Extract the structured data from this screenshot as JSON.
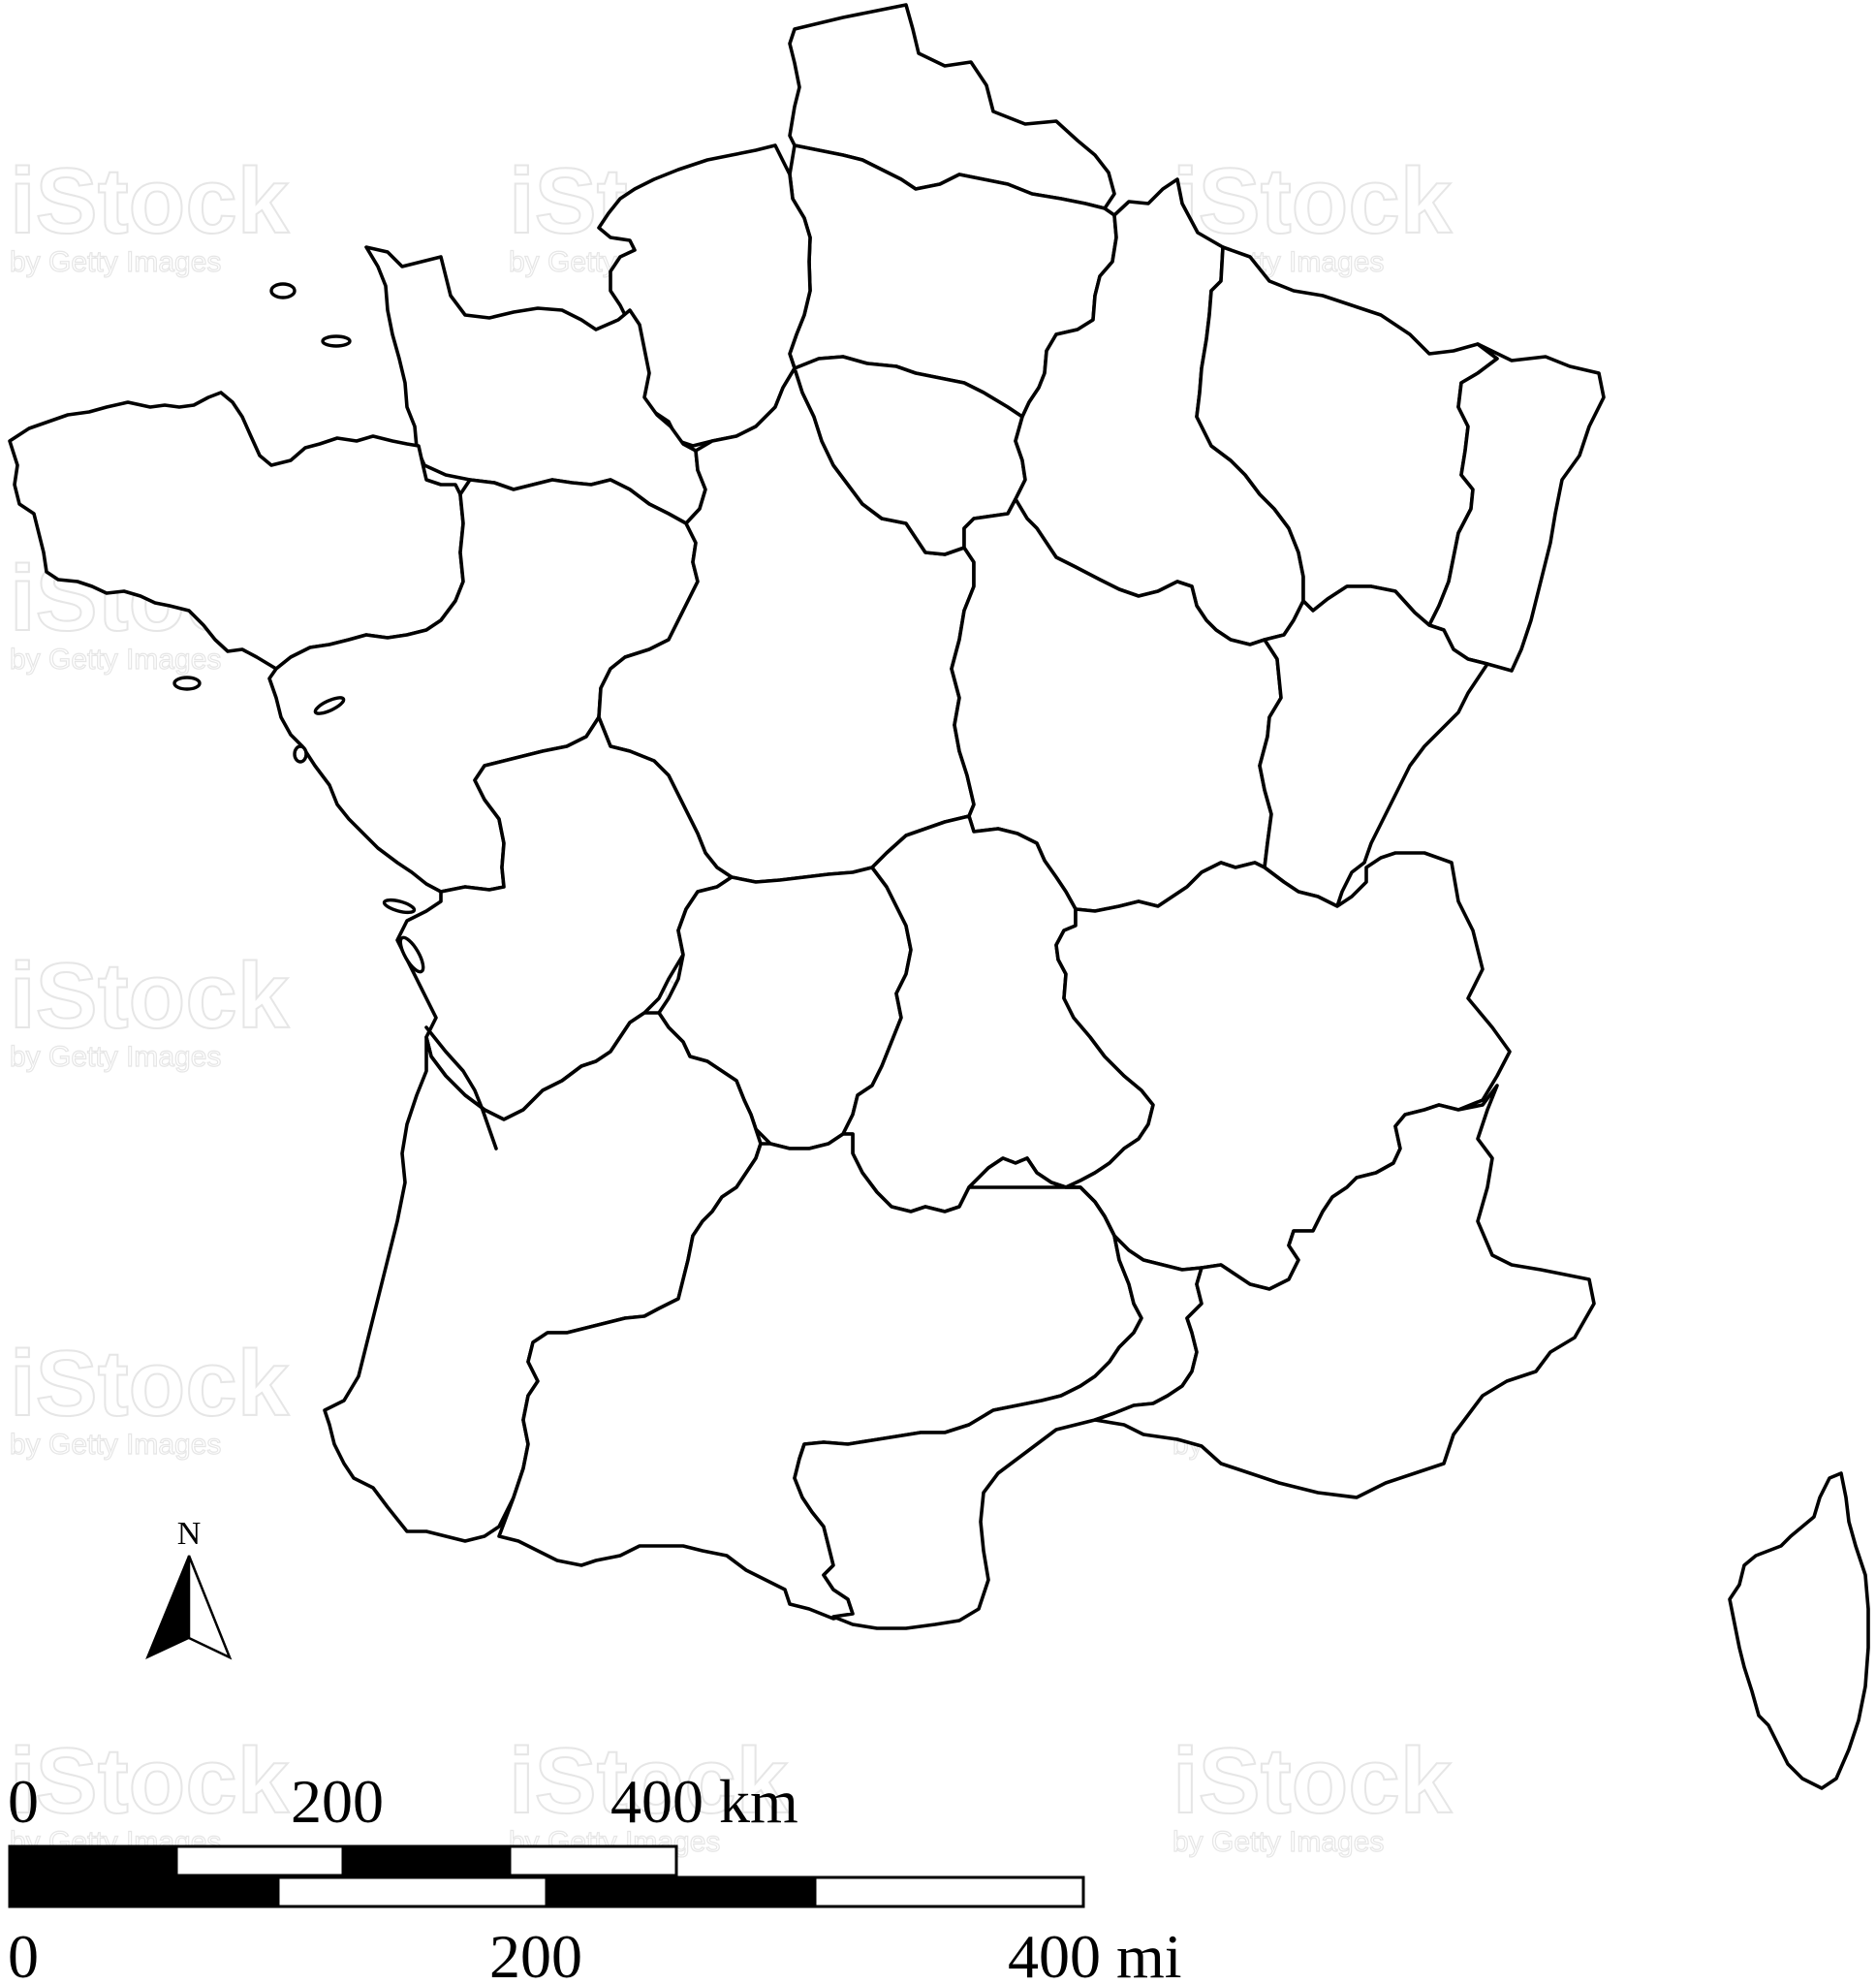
{
  "map": {
    "subject": "France regions outline map",
    "outline_color": "#000000",
    "background_color": "#ffffff",
    "regions": [
      "hauts-de-france",
      "picardie",
      "basse-normandie",
      "haute-normandie",
      "bretagne",
      "pays-de-la-loire",
      "centre",
      "ile-de-france",
      "champagne-ardenne",
      "lorraine",
      "alsace",
      "bourgogne",
      "franche-comte",
      "poitou-charentes",
      "limousin",
      "auvergne",
      "rhone-alpes",
      "aquitaine",
      "midi-pyrenees",
      "languedoc-roussillon",
      "provence-alpes-cote-dazur",
      "corse"
    ]
  },
  "north_arrow": {
    "label": "N",
    "icon": "north-arrow-icon"
  },
  "scale_bar": {
    "km_labels": [
      "0",
      "200",
      "400 km"
    ],
    "mi_labels": [
      "0",
      "200",
      "400 mi"
    ],
    "km_segments": 4,
    "mi_segments": 4
  },
  "watermark": {
    "main": "iStock",
    "sub": "by Getty Images"
  }
}
